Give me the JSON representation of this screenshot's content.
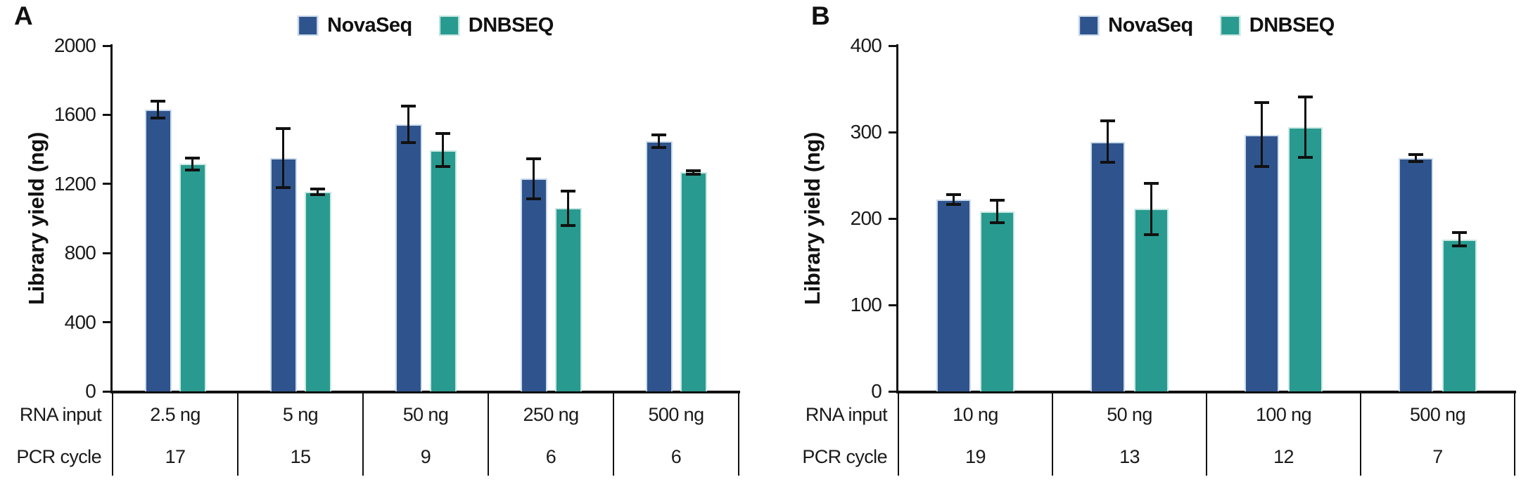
{
  "figure_styles": {
    "error_bar_color": "#111111",
    "axis_color": "#111111",
    "text_color": "#1a1a1a",
    "background": "#ffffff",
    "novaseq_color": "#2F548D",
    "dnbseq_color": "#299A8F"
  },
  "chart_data": [
    {
      "type": "bar",
      "panel_label": "A",
      "title": "",
      "xlabel": "",
      "ylabel": "Library yield (ng)",
      "ylim": [
        0,
        2000
      ],
      "yticks": [
        "0",
        "400",
        "800",
        "1200",
        "1600",
        "2000"
      ],
      "grid": false,
      "legend_position": "top-center",
      "legend": [
        "NovaSeq",
        "DNBSEQ"
      ],
      "row_headers": [
        "RNA input",
        "PCR cycle"
      ],
      "categories": [
        "2.5 ng",
        "5 ng",
        "50 ng",
        "250 ng",
        "500 ng"
      ],
      "pcr_cycles": [
        "17",
        "15",
        "9",
        "6",
        "6"
      ],
      "series": [
        {
          "name": "NovaSeq",
          "color": "#2F548D",
          "edge_color": "#CBDCEC",
          "values": [
            1630,
            1350,
            1545,
            1230,
            1447
          ],
          "errors": [
            50,
            170,
            105,
            115,
            35
          ]
        },
        {
          "name": "DNBSEQ",
          "color": "#299A8F",
          "edge_color": "#C8E8E3",
          "values": [
            1316,
            1155,
            1395,
            1060,
            1268
          ],
          "errors": [
            35,
            15,
            95,
            100,
            10
          ]
        }
      ]
    },
    {
      "type": "bar",
      "panel_label": "B",
      "title": "",
      "xlabel": "",
      "ylabel": "Library yield (ng)",
      "ylim": [
        0,
        400
      ],
      "yticks": [
        "0",
        "100",
        "200",
        "300",
        "400"
      ],
      "grid": false,
      "legend_position": "top-center",
      "legend": [
        "NovaSeq",
        "DNBSEQ"
      ],
      "row_headers": [
        "RNA input",
        "PCR cycle"
      ],
      "categories": [
        "10 ng",
        "50 ng",
        "100 ng",
        "500 ng"
      ],
      "pcr_cycles": [
        "19",
        "13",
        "12",
        "7"
      ],
      "series": [
        {
          "name": "NovaSeq",
          "color": "#2F548D",
          "edge_color": "#CBDCEC",
          "values": [
            222,
            289,
            297,
            270
          ],
          "errors": [
            6,
            24,
            37,
            4
          ]
        },
        {
          "name": "DNBSEQ",
          "color": "#299A8F",
          "edge_color": "#C8E8E3",
          "values": [
            208,
            211,
            306,
            176
          ],
          "errors": [
            13,
            30,
            35,
            8
          ]
        }
      ]
    }
  ]
}
